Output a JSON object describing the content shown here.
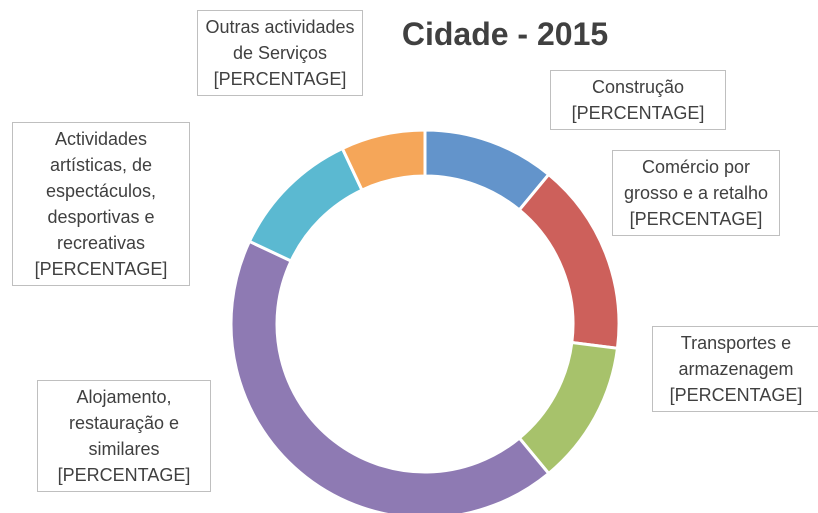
{
  "chart_data": {
    "type": "donut",
    "title": "Cidade - 2015",
    "categories": [
      "Construção",
      "Comércio por grosso e a retalho",
      "Transportes e armazenagem",
      "Alojamento, restauração e similares",
      "Actividades artísticas, de espectáculos, desportivas e recreativas",
      "Outras actividades de Serviços"
    ],
    "values": [
      11,
      16,
      12,
      43,
      11,
      7
    ],
    "value_labels": [
      "[PERCENTAGE]",
      "[PERCENTAGE]",
      "[PERCENTAGE]",
      "[PERCENTAGE]",
      "[PERCENTAGE]",
      "[PERCENTAGE]"
    ],
    "colors": [
      "#6394cb",
      "#cd605b",
      "#a7c26b",
      "#8e7ab3",
      "#5bb9d1",
      "#f5a659"
    ]
  }
}
